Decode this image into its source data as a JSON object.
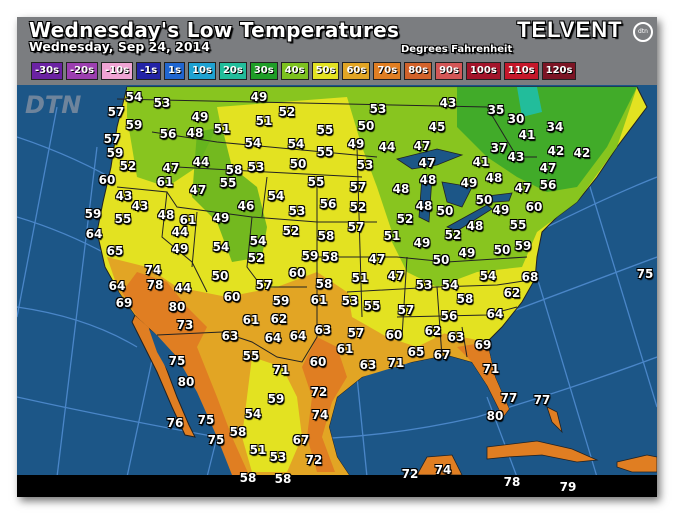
{
  "header": {
    "title": "Wednesday's Low Temperatures",
    "subtitle": "Wednesday, Sep 24, 2014",
    "units": "Degrees Fahrenheit",
    "brand": "TELVENT",
    "brand_badge": "dtn",
    "watermark": "DTN"
  },
  "legend": [
    {
      "label": "-30s",
      "color": "#6b22a3"
    },
    {
      "label": "-20s",
      "color": "#9c3fb0"
    },
    {
      "label": "-10s",
      "color": "#f0a4d4"
    },
    {
      "label": "-1s",
      "color": "#2323a6"
    },
    {
      "label": "1s",
      "color": "#2066d0"
    },
    {
      "label": "10s",
      "color": "#1ea2d2"
    },
    {
      "label": "20s",
      "color": "#22bd9b"
    },
    {
      "label": "30s",
      "color": "#1f9e27"
    },
    {
      "label": "40s",
      "color": "#7dc21f"
    },
    {
      "label": "50s",
      "color": "#e3e221"
    },
    {
      "label": "60s",
      "color": "#e2a524"
    },
    {
      "label": "70s",
      "color": "#e07e22"
    },
    {
      "label": "80s",
      "color": "#d2622a"
    },
    {
      "label": "90s",
      "color": "#d35656"
    },
    {
      "label": "100s",
      "color": "#a3142a"
    },
    {
      "label": "110s",
      "color": "#c5172a"
    },
    {
      "label": "120s",
      "color": "#7c1424"
    }
  ],
  "colors": {
    "ocean": "#1c5687",
    "land_50s": "#e3e221",
    "land_40s": "#7dc21f",
    "land_30s": "#3aa72a",
    "land_60s": "#e2a524",
    "land_70s": "#e07e22",
    "header": "#7b7d80"
  },
  "temperatures": [
    "54",
    "53",
    "57",
    "59",
    "57",
    "56",
    "59",
    "52",
    "60",
    "61",
    "43",
    "59",
    "55",
    "43",
    "48",
    "64",
    "65",
    "74",
    "64",
    "78",
    "44",
    "69",
    "80",
    "73",
    "75",
    "80",
    "76",
    "75",
    "75",
    "58",
    "54",
    "51",
    "53",
    "58",
    "58",
    "67",
    "72",
    "59",
    "74",
    "72",
    "71",
    "60",
    "55",
    "63",
    "64",
    "64",
    "62",
    "61",
    "63",
    "60",
    "59",
    "61",
    "57",
    "58",
    "49",
    "52",
    "51",
    "49",
    "48",
    "51",
    "44",
    "58",
    "53",
    "54",
    "47",
    "47",
    "55",
    "61",
    "49",
    "46",
    "44",
    "49",
    "54",
    "54",
    "52",
    "50",
    "54",
    "50",
    "55",
    "55",
    "55",
    "54",
    "56",
    "53",
    "52",
    "58",
    "59",
    "60",
    "58",
    "53",
    "50",
    "49",
    "44",
    "47",
    "53",
    "57",
    "52",
    "57",
    "51",
    "49",
    "50",
    "47",
    "48",
    "48",
    "47",
    "45",
    "43",
    "35",
    "30",
    "41",
    "34",
    "37",
    "41",
    "43",
    "42",
    "42",
    "47",
    "48",
    "49",
    "50",
    "47",
    "56",
    "49",
    "60",
    "55",
    "48",
    "52",
    "49",
    "50",
    "59",
    "54",
    "68",
    "75",
    "52",
    "48",
    "50",
    "51",
    "47",
    "53",
    "54",
    "58",
    "62",
    "53",
    "55",
    "57",
    "56",
    "64",
    "57",
    "60",
    "62",
    "63",
    "69",
    "61",
    "65",
    "67",
    "63",
    "71",
    "71",
    "77",
    "77",
    "80",
    "72",
    "74",
    "78",
    "79"
  ]
}
